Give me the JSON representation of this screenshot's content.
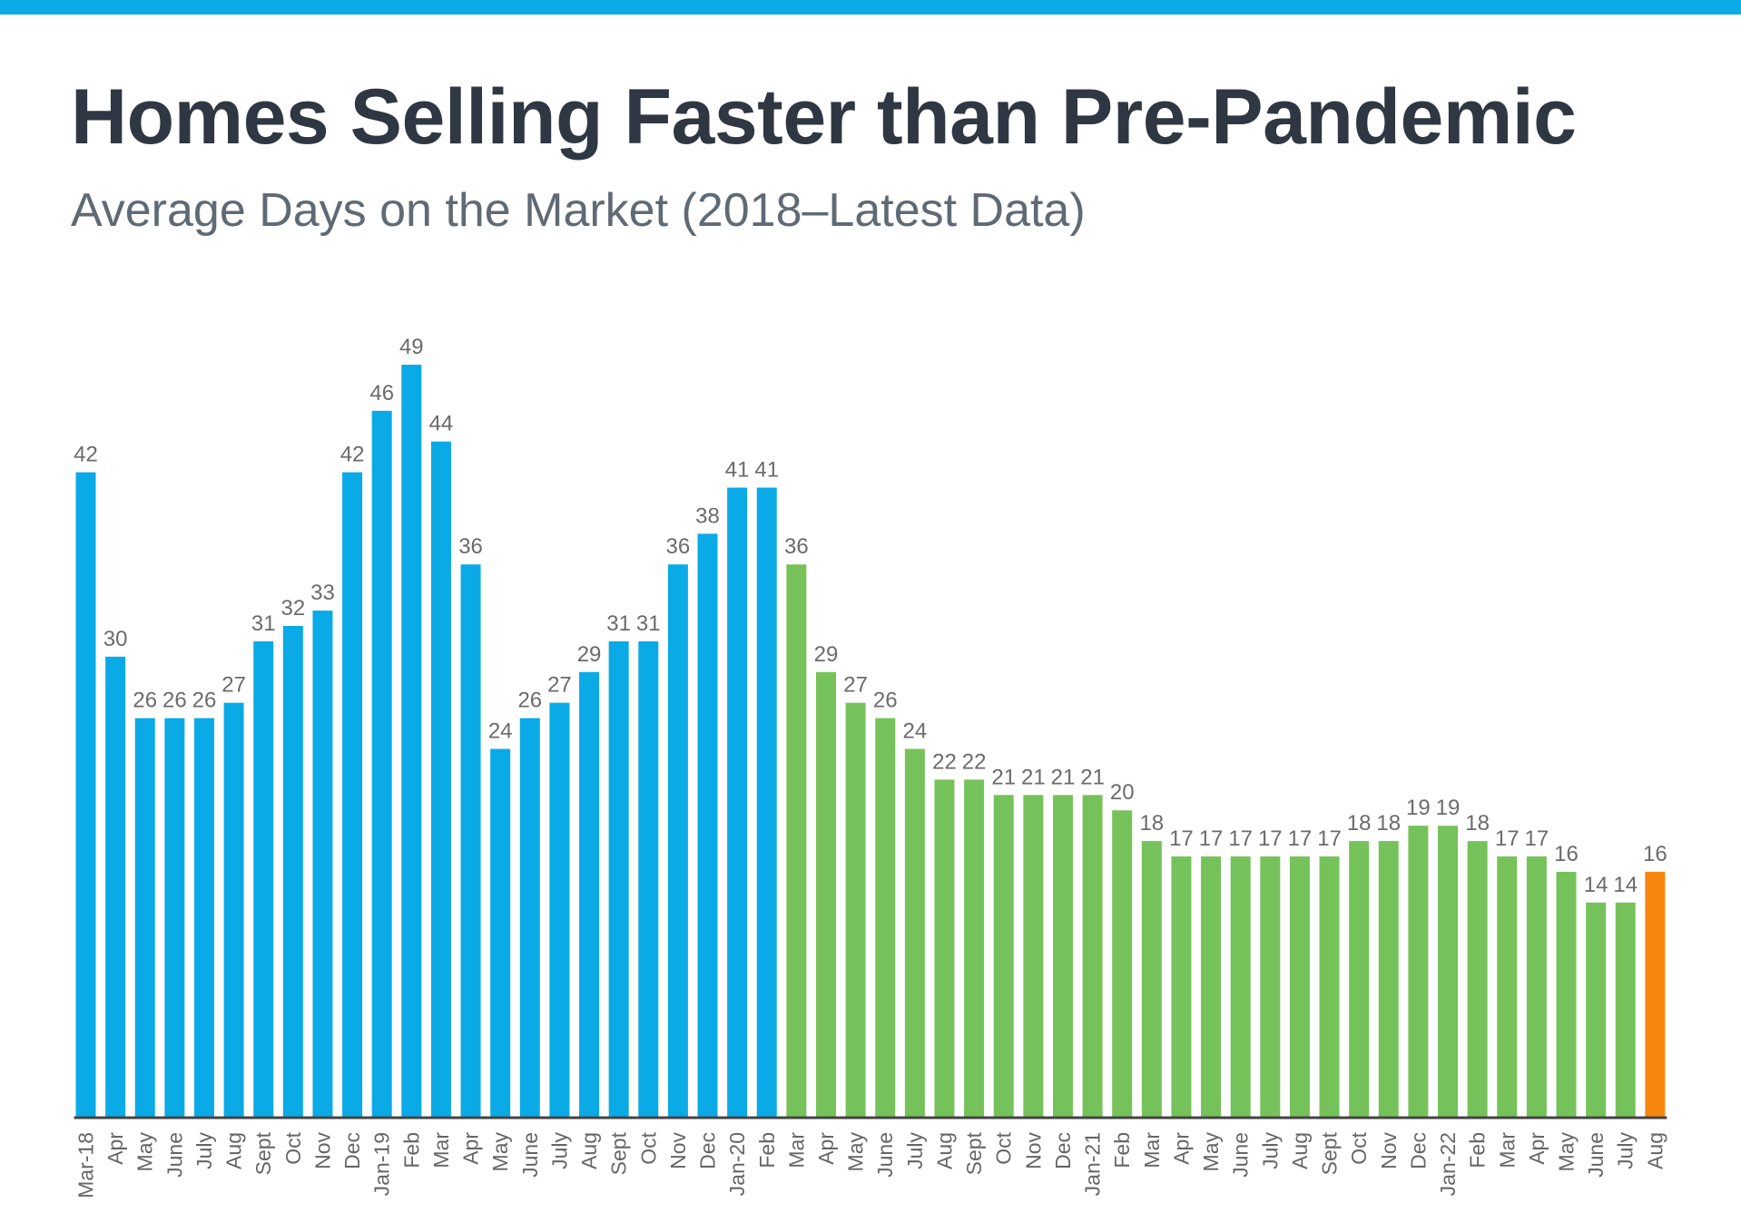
{
  "header": {
    "title": "Homes Selling Faster than Pre-Pandemic",
    "subtitle": "Average Days on the Market (2018–Latest Data)"
  },
  "colors": {
    "topbar": "#0aaae6",
    "prepandemic": "#0aaae6",
    "pandemic": "#76c25a",
    "latest": "#f7860f",
    "axis": "#444444"
  },
  "chart_data": {
    "type": "bar",
    "title": "Homes Selling Faster than Pre-Pandemic",
    "subtitle": "Average Days on the Market (2018–Latest Data)",
    "xlabel": "",
    "ylabel": "",
    "ylim": [
      0,
      49
    ],
    "grid": false,
    "categories": [
      "Mar-18",
      "Apr",
      "May",
      "June",
      "July",
      "Aug",
      "Sept",
      "Oct",
      "Nov",
      "Dec",
      "Jan-19",
      "Feb",
      "Mar",
      "Apr",
      "May",
      "June",
      "July",
      "Aug",
      "Sept",
      "Oct",
      "Nov",
      "Dec",
      "Jan-20",
      "Feb",
      "Mar",
      "Apr",
      "May",
      "June",
      "July",
      "Aug",
      "Sept",
      "Oct",
      "Nov",
      "Dec",
      "Jan-21",
      "Feb",
      "Mar",
      "Apr",
      "May",
      "June",
      "July",
      "Aug",
      "Sept",
      "Oct",
      "Nov",
      "Dec",
      "Jan-22",
      "Feb",
      "Mar",
      "Apr",
      "May",
      "June",
      "July",
      "Aug"
    ],
    "values": [
      42,
      30,
      26,
      26,
      26,
      27,
      31,
      32,
      33,
      42,
      46,
      49,
      44,
      36,
      24,
      26,
      27,
      29,
      31,
      31,
      36,
      38,
      41,
      41,
      36,
      29,
      27,
      26,
      24,
      22,
      22,
      21,
      21,
      21,
      21,
      20,
      18,
      17,
      17,
      17,
      17,
      17,
      17,
      18,
      18,
      19,
      19,
      18,
      17,
      17,
      16,
      14,
      14,
      16
    ],
    "groups": [
      "pre",
      "pre",
      "pre",
      "pre",
      "pre",
      "pre",
      "pre",
      "pre",
      "pre",
      "pre",
      "pre",
      "pre",
      "pre",
      "pre",
      "pre",
      "pre",
      "pre",
      "pre",
      "pre",
      "pre",
      "pre",
      "pre",
      "pre",
      "pre",
      "pan",
      "pan",
      "pan",
      "pan",
      "pan",
      "pan",
      "pan",
      "pan",
      "pan",
      "pan",
      "pan",
      "pan",
      "pan",
      "pan",
      "pan",
      "pan",
      "pan",
      "pan",
      "pan",
      "pan",
      "pan",
      "pan",
      "pan",
      "pan",
      "pan",
      "pan",
      "pan",
      "pan",
      "pan",
      "latest"
    ],
    "data_labels": true
  }
}
